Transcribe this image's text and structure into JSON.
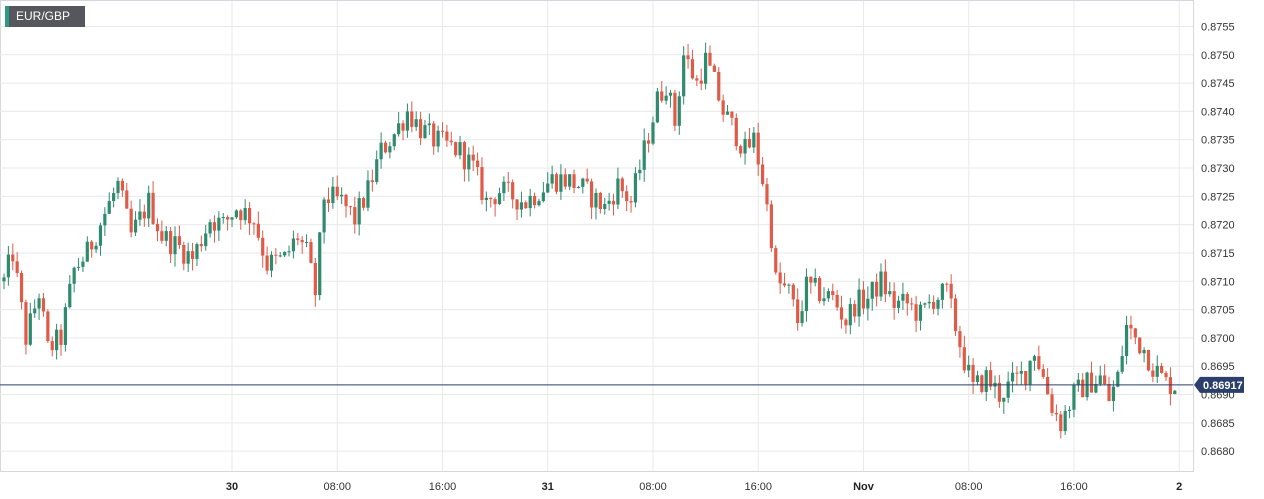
{
  "instrument": {
    "label": "EUR/GBP"
  },
  "colors": {
    "up": "#2e8b6e",
    "down": "#e05a48",
    "grid": "#e9e9ec",
    "price_line": "#2a3f6b",
    "price_tag": "#2a3f6b",
    "accent": "#2e9a84"
  },
  "chart_data": {
    "type": "candlestick",
    "title": "EUR/GBP",
    "xlabel": "",
    "ylabel": "",
    "ylim": [
      0.86765,
      0.87595
    ],
    "grid": true,
    "y_ticks": [
      "0.8755",
      "0.8750",
      "0.8745",
      "0.8740",
      "0.8735",
      "0.8730",
      "0.8725",
      "0.8720",
      "0.8715",
      "0.8710",
      "0.8705",
      "0.8700",
      "0.8695",
      "0.8690",
      "0.8685",
      "0.8680"
    ],
    "y_tick_values": [
      0.8755,
      0.875,
      0.8745,
      0.874,
      0.8735,
      0.873,
      0.8725,
      0.872,
      0.8715,
      0.871,
      0.8705,
      0.87,
      0.8695,
      0.869,
      0.8685,
      0.868
    ],
    "x_ticks": [
      {
        "label": "30",
        "bold": true,
        "bar": 52
      },
      {
        "label": "08:00",
        "bold": false,
        "bar": 76
      },
      {
        "label": "16:00",
        "bold": false,
        "bar": 100
      },
      {
        "label": "31",
        "bold": true,
        "bar": 124
      },
      {
        "label": "08:00",
        "bold": false,
        "bar": 148
      },
      {
        "label": "16:00",
        "bold": false,
        "bar": 172
      },
      {
        "label": "Nov",
        "bold": true,
        "bar": 196
      },
      {
        "label": "08:00",
        "bold": false,
        "bar": 220
      },
      {
        "label": "16:00",
        "bold": false,
        "bar": 244
      },
      {
        "label": "2",
        "bold": true,
        "bar": 268
      }
    ],
    "last_price": 0.86917,
    "last_price_label": "0.86917",
    "anchors": [
      [
        0,
        0.871
      ],
      [
        2,
        0.8715
      ],
      [
        5,
        0.87
      ],
      [
        8,
        0.8708
      ],
      [
        10,
        0.8698
      ],
      [
        13,
        0.87
      ],
      [
        16,
        0.8712
      ],
      [
        19,
        0.8715
      ],
      [
        23,
        0.8722
      ],
      [
        26,
        0.8727
      ],
      [
        29,
        0.8718
      ],
      [
        33,
        0.8724
      ],
      [
        36,
        0.8718
      ],
      [
        40,
        0.8716
      ],
      [
        43,
        0.8714
      ],
      [
        47,
        0.8721
      ],
      [
        50,
        0.872
      ],
      [
        53,
        0.8723
      ],
      [
        57,
        0.8721
      ],
      [
        60,
        0.8713
      ],
      [
        64,
        0.8714
      ],
      [
        67,
        0.8718
      ],
      [
        69,
        0.8715
      ],
      [
        71,
        0.8708
      ],
      [
        73,
        0.8725
      ],
      [
        77,
        0.8724
      ],
      [
        80,
        0.8721
      ],
      [
        83,
        0.8726
      ],
      [
        86,
        0.8733
      ],
      [
        89,
        0.8736
      ],
      [
        92,
        0.874
      ],
      [
        95,
        0.8737
      ],
      [
        98,
        0.8735
      ],
      [
        101,
        0.8734
      ],
      [
        104,
        0.8733
      ],
      [
        107,
        0.873
      ],
      [
        110,
        0.8724
      ],
      [
        113,
        0.8726
      ],
      [
        116,
        0.8725
      ],
      [
        119,
        0.8724
      ],
      [
        122,
        0.8726
      ],
      [
        125,
        0.8728
      ],
      [
        128,
        0.8728
      ],
      [
        131,
        0.8727
      ],
      [
        134,
        0.8725
      ],
      [
        137,
        0.8723
      ],
      [
        140,
        0.8727
      ],
      [
        143,
        0.8724
      ],
      [
        146,
        0.8733
      ],
      [
        149,
        0.8742
      ],
      [
        151,
        0.8745
      ],
      [
        153,
        0.8738
      ],
      [
        155,
        0.875
      ],
      [
        158,
        0.8745
      ],
      [
        160,
        0.8749
      ],
      [
        162,
        0.8745
      ],
      [
        164,
        0.874
      ],
      [
        167,
        0.8736
      ],
      [
        169,
        0.8733
      ],
      [
        171,
        0.8735
      ],
      [
        173,
        0.8728
      ],
      [
        175,
        0.8718
      ],
      [
        176,
        0.871
      ],
      [
        179,
        0.8708
      ],
      [
        181,
        0.8703
      ],
      [
        183,
        0.8709
      ],
      [
        186,
        0.8708
      ],
      [
        189,
        0.8707
      ],
      [
        192,
        0.8703
      ],
      [
        194,
        0.8706
      ],
      [
        197,
        0.8707
      ],
      [
        200,
        0.871
      ],
      [
        203,
        0.8706
      ],
      [
        206,
        0.8706
      ],
      [
        209,
        0.8704
      ],
      [
        212,
        0.8707
      ],
      [
        215,
        0.8708
      ],
      [
        217,
        0.8702
      ],
      [
        219,
        0.8696
      ],
      [
        221,
        0.8691
      ],
      [
        224,
        0.8693
      ],
      [
        227,
        0.869
      ],
      [
        230,
        0.8692
      ],
      [
        233,
        0.8694
      ],
      [
        235,
        0.8698
      ],
      [
        237,
        0.8693
      ],
      [
        239,
        0.8688
      ],
      [
        241,
        0.8685
      ],
      [
        244,
        0.869
      ],
      [
        247,
        0.8692
      ],
      [
        250,
        0.8693
      ],
      [
        252,
        0.8689
      ],
      [
        254,
        0.8693
      ],
      [
        256,
        0.8702
      ],
      [
        258,
        0.87
      ],
      [
        260,
        0.8698
      ],
      [
        262,
        0.8695
      ],
      [
        265,
        0.8692
      ],
      [
        267,
        0.86917
      ]
    ],
    "n_bars": 268
  }
}
